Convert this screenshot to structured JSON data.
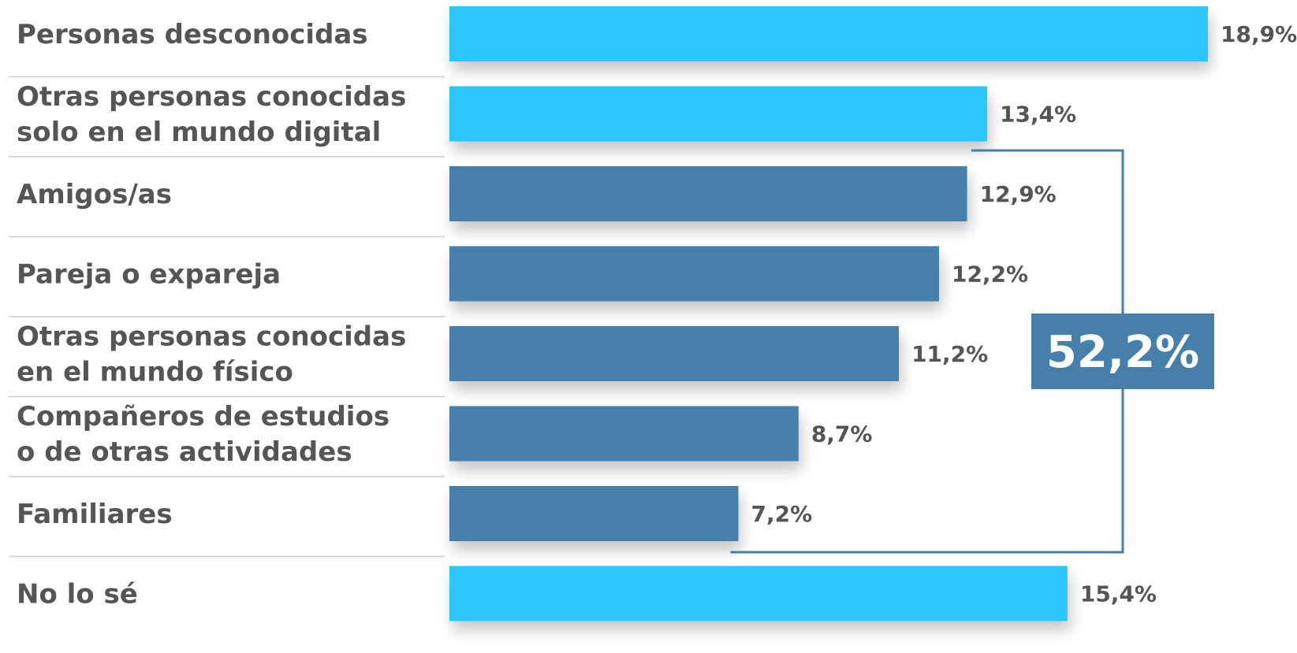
{
  "chart_data": {
    "type": "bar",
    "orientation": "horizontal",
    "categories": [
      [
        "Personas desconocidas"
      ],
      [
        "Otras personas conocidas",
        "solo en el mundo digital"
      ],
      [
        "Amigos/as"
      ],
      [
        "Pareja o expareja"
      ],
      [
        "Otras personas conocidas",
        "en el mundo físico"
      ],
      [
        "Compañeros de estudios",
        "o de otras actividades"
      ],
      [
        "Familiares"
      ],
      [
        "No lo sé"
      ]
    ],
    "values": [
      18.9,
      13.4,
      12.9,
      12.2,
      11.2,
      8.7,
      7.2,
      15.4
    ],
    "value_labels": [
      "18,9%",
      "13,4%",
      "12,9%",
      "12,2%",
      "11,2%",
      "8,7%",
      "7,2%",
      "15,4%"
    ],
    "bar_groups": [
      "highlight",
      "highlight",
      "base",
      "base",
      "base",
      "base",
      "base",
      "highlight"
    ],
    "xlim": [
      0,
      18.9
    ],
    "grid": false,
    "legend": "none",
    "colors": {
      "highlight": "#2bc6fd",
      "base": "#4680aa",
      "label_text": "#555555",
      "divider": "#cccccc",
      "bracket": "#4680aa",
      "total_box": "#4680aa",
      "total_text": "#ffffff"
    },
    "bracket": {
      "from_index": 2,
      "to_index": 6,
      "label": "52,2%"
    }
  }
}
